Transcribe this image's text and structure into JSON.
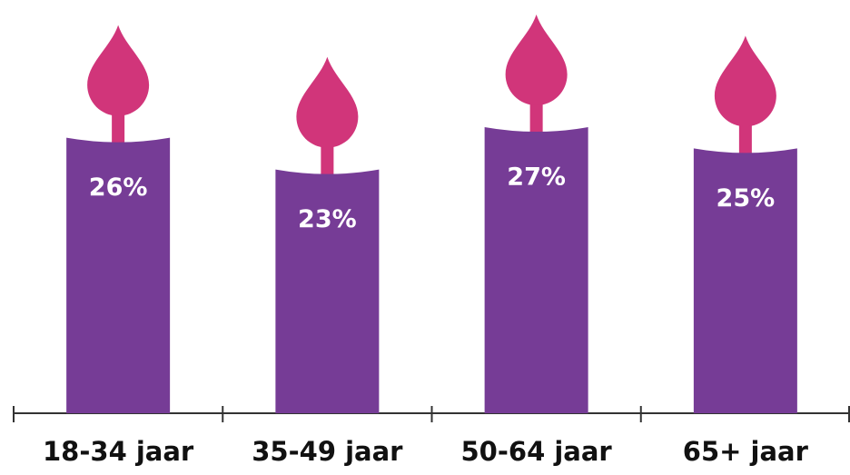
{
  "chart_data": {
    "type": "candle-bar",
    "categories": [
      "18-34 jaar",
      "35-49 jaar",
      "50-64 jaar",
      "65+ jaar"
    ],
    "values": [
      26,
      23,
      27,
      25
    ],
    "value_labels": [
      "26%",
      "23%",
      "27%",
      "25%"
    ],
    "color": "#763c96",
    "flame_color": "#d1357a"
  }
}
